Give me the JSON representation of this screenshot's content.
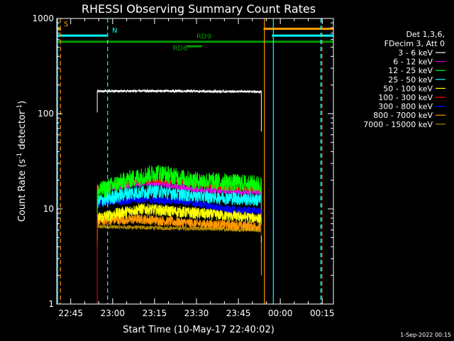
{
  "chart_data": {
    "type": "line",
    "title": "RHESSI Observing Summary Count Rates",
    "xlabel": "Start Time (10-May-17 22:40:02)",
    "ylabel_main": "Count Rate (s",
    "ylabel_sup1": "-1",
    "ylabel_mid": " detector",
    "ylabel_sup2": "-1",
    "ylabel_end": ")",
    "yscale": "log",
    "ylim": [
      1,
      1000
    ],
    "xlim_minutes": [
      0,
      99
    ],
    "x_ticks": [
      {
        "label": "22:45",
        "minutes": 5
      },
      {
        "label": "23:00",
        "minutes": 20
      },
      {
        "label": "23:15",
        "minutes": 35
      },
      {
        "label": "23:30",
        "minutes": 50
      },
      {
        "label": "23:45",
        "minutes": 65
      },
      {
        "label": "00:00",
        "minutes": 80
      },
      {
        "label": "00:15",
        "minutes": 95
      }
    ],
    "y_ticks": [
      {
        "label": "1",
        "value": 1
      },
      {
        "label": "10",
        "value": 10
      },
      {
        "label": "100",
        "value": 100
      },
      {
        "label": "1000",
        "value": 1000
      }
    ],
    "legend": {
      "header": [
        "Det 1,3,6,",
        "FDecim 3, Att 0"
      ],
      "position": "right"
    },
    "series": [
      {
        "name": "3 - 6 keV",
        "color": "#ffffff",
        "start": 14.5,
        "end": 73.2,
        "level": [
          [
            14.5,
            172
          ],
          [
            30,
            173
          ],
          [
            50,
            172
          ],
          [
            73.2,
            170
          ]
        ],
        "noise": 0.03
      },
      {
        "name": "6 - 12 keV",
        "color": "#e000e0",
        "start": 14.5,
        "end": 73.2,
        "level": [
          [
            14.5,
            16
          ],
          [
            33,
            19
          ],
          [
            50,
            16
          ],
          [
            73.2,
            15
          ]
        ],
        "noise": 0.08
      },
      {
        "name": "12 - 25 keV",
        "color": "#00ff00",
        "start": 14.5,
        "end": 73.2,
        "level": [
          [
            14.5,
            15
          ],
          [
            25,
            20
          ],
          [
            36,
            24
          ],
          [
            48,
            20
          ],
          [
            73.2,
            18
          ]
        ],
        "noise": 0.22
      },
      {
        "name": "25 - 50 keV",
        "color": "#00ffff",
        "start": 14.5,
        "end": 73.2,
        "level": [
          [
            14.5,
            12
          ],
          [
            25,
            14.5
          ],
          [
            35,
            15.5
          ],
          [
            48,
            14
          ],
          [
            73.2,
            12.5
          ]
        ],
        "noise": 0.18
      },
      {
        "name": "50 - 100 keV",
        "color": "#ffff00",
        "start": 14.5,
        "end": 73.2,
        "level": [
          [
            14.5,
            8
          ],
          [
            30,
            10
          ],
          [
            50,
            9
          ],
          [
            73.2,
            8
          ]
        ],
        "noise": 0.14
      },
      {
        "name": "100 - 300 keV",
        "color": "#ff0000",
        "start": 14.5,
        "end": 73.2,
        "level": [
          [
            14.5,
            17
          ],
          [
            30,
            19.5
          ],
          [
            45,
            19
          ],
          [
            60,
            16.5
          ],
          [
            73.2,
            16
          ]
        ],
        "noise": 0.05
      },
      {
        "name": "300 - 800 keV",
        "color": "#0000ff",
        "start": 14.5,
        "end": 73.2,
        "level": [
          [
            14.5,
            11.5
          ],
          [
            30,
            12.5
          ],
          [
            45,
            12
          ],
          [
            60,
            10
          ],
          [
            73.2,
            9.5
          ]
        ],
        "noise": 0.09
      },
      {
        "name": "800 - 7000 keV",
        "color": "#ff9900",
        "start": 14.5,
        "end": 73.2,
        "level": [
          [
            14.5,
            7.5
          ],
          [
            30,
            7.8
          ],
          [
            50,
            7
          ],
          [
            73.2,
            6.5
          ]
        ],
        "noise": 0.12
      },
      {
        "name": "7000 - 15000 keV",
        "color": "#aa8800",
        "start": 14.5,
        "end": 73.2,
        "level": [
          [
            14.5,
            6.5
          ],
          [
            73.2,
            6
          ]
        ],
        "noise": 0.05
      }
    ],
    "state_bars": [
      {
        "label": "S",
        "color": "#ff9900",
        "start": 0,
        "end": 1.5,
        "value": 770
      },
      {
        "label": "N",
        "color": "#00ffff",
        "start": 0,
        "end": 18,
        "value": 660
      },
      {
        "label": "RD9",
        "color": "#009900",
        "start": 0,
        "end": 99,
        "value": 570
      },
      {
        "label": "RD6",
        "color": "#009900",
        "start": 46.5,
        "end": 52,
        "value": 510
      },
      {
        "label": "",
        "color": "#ff9900",
        "start": 74,
        "end": 99,
        "value": 780
      },
      {
        "label": "",
        "color": "#00ffff",
        "start": 77,
        "end": 99,
        "value": 660
      }
    ],
    "event_lines": [
      {
        "minutes": 0.3,
        "color": "#00ffff",
        "style": "solid"
      },
      {
        "minutes": 1.3,
        "color": "#ff9900",
        "style": "dashed"
      },
      {
        "minutes": 18.2,
        "color": "#00ffff",
        "style": "dashed"
      },
      {
        "minutes": 74.3,
        "color": "#ff9900",
        "style": "solid"
      },
      {
        "minutes": 77.5,
        "color": "#00ffff",
        "style": "solid"
      },
      {
        "minutes": 94.5,
        "color": "#00ffff",
        "style": "dashed"
      },
      {
        "minutes": 94.9,
        "color": "#ff9900",
        "style": "dashed"
      }
    ],
    "footer_date": "1-Sep-2022 00:15"
  }
}
